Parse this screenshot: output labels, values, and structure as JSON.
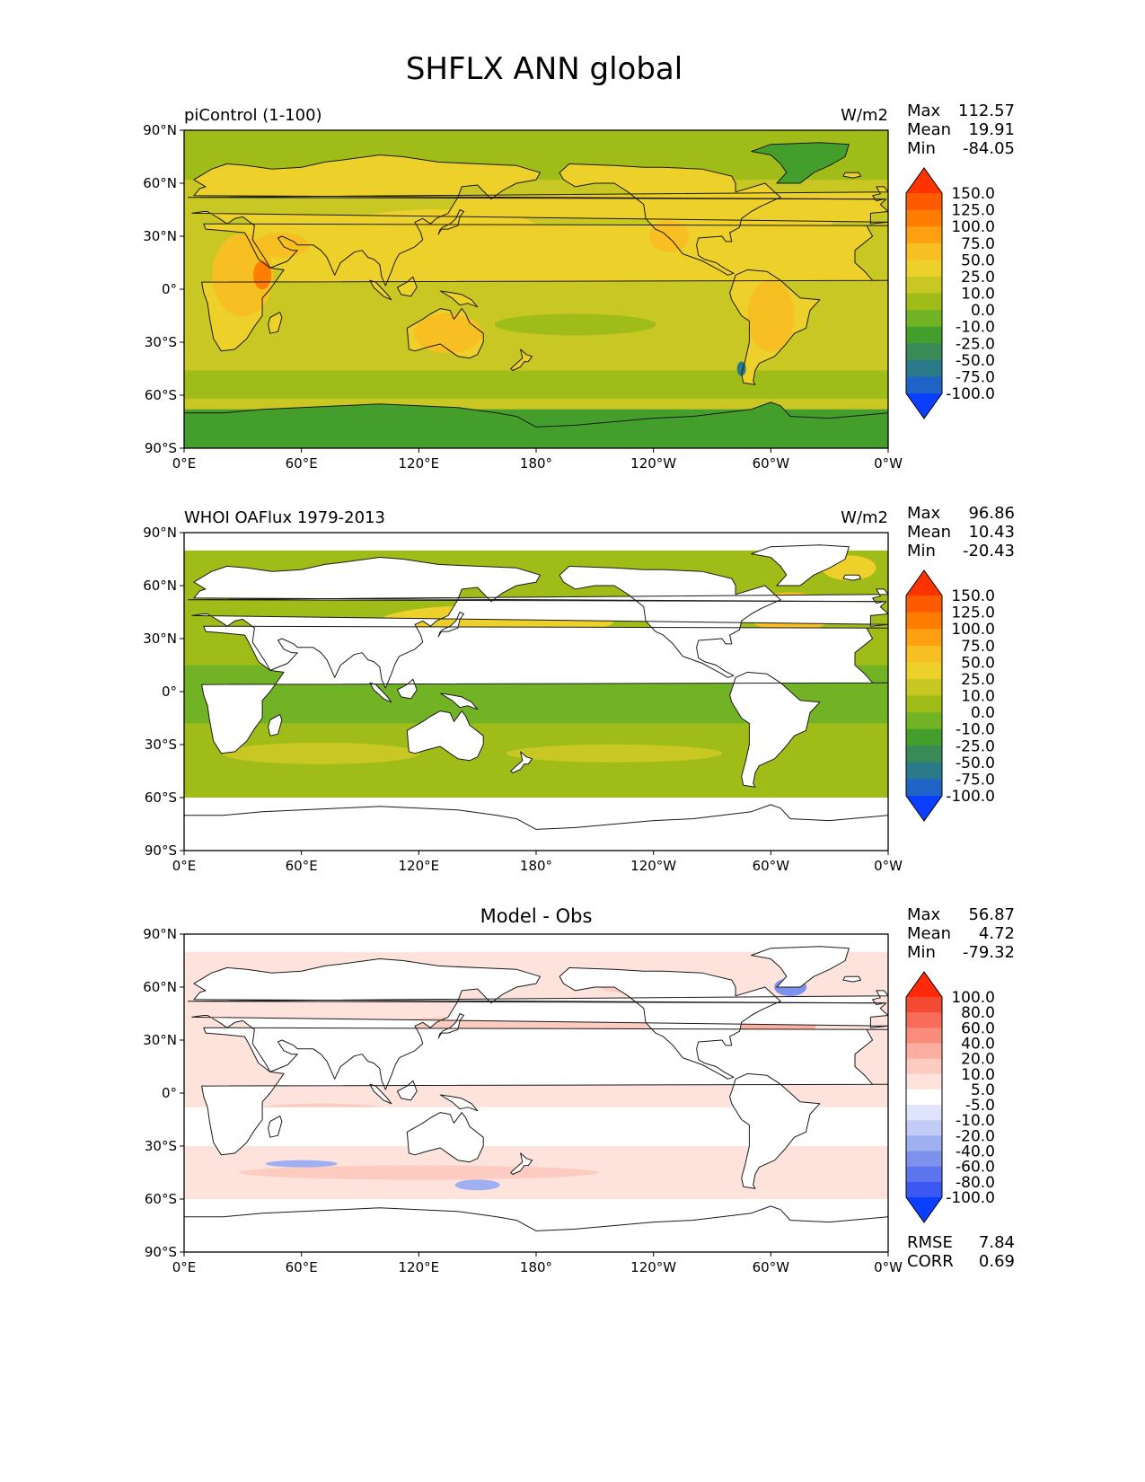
{
  "figure": {
    "title": "SHFLX ANN global"
  },
  "panels": [
    {
      "id": "test",
      "title_left": "piControl (1-100)",
      "title_center": "",
      "units": "W/m2",
      "stats": [
        {
          "label": "Max",
          "value": "112.57"
        },
        {
          "label": "Mean",
          "value": "19.91"
        },
        {
          "label": "Min",
          "value": "-84.05"
        }
      ],
      "extra_stats": [],
      "colorbar": {
        "levels": [
          "150.0",
          "125.0",
          "100.0",
          "75.0",
          "50.0",
          "25.0",
          "10.0",
          "0.0",
          "-10.0",
          "-25.0",
          "-50.0",
          "-75.0",
          "-100.0"
        ],
        "colors": [
          "#ff3300",
          "#ff5a00",
          "#ff7d00",
          "#ff9f12",
          "#f8bf22",
          "#eed02a",
          "#c8c724",
          "#a0bc19",
          "#72b325",
          "#449e2c",
          "#3a8a58",
          "#2a7a8c",
          "#1f63c7",
          "#0a3fff"
        ]
      }
    },
    {
      "id": "ref",
      "title_left": "WHOI OAFlux 1979-2013",
      "title_center": "",
      "units": "W/m2",
      "stats": [
        {
          "label": "Max",
          "value": "96.86"
        },
        {
          "label": "Mean",
          "value": "10.43"
        },
        {
          "label": "Min",
          "value": "-20.43"
        }
      ],
      "extra_stats": [],
      "colorbar": {
        "levels": [
          "150.0",
          "125.0",
          "100.0",
          "75.0",
          "50.0",
          "25.0",
          "10.0",
          "0.0",
          "-10.0",
          "-25.0",
          "-50.0",
          "-75.0",
          "-100.0"
        ],
        "colors": [
          "#ff3300",
          "#ff5a00",
          "#ff7d00",
          "#ff9f12",
          "#f8bf22",
          "#eed02a",
          "#c8c724",
          "#a0bc19",
          "#72b325",
          "#449e2c",
          "#3a8a58",
          "#2a7a8c",
          "#1f63c7",
          "#0a3fff"
        ]
      }
    },
    {
      "id": "diff",
      "title_left": "",
      "title_center": "Model - Obs",
      "units": "",
      "stats": [
        {
          "label": "Max",
          "value": "56.87"
        },
        {
          "label": "Mean",
          "value": "4.72"
        },
        {
          "label": "Min",
          "value": "-79.32"
        }
      ],
      "extra_stats": [
        {
          "label": "RMSE",
          "value": "7.84"
        },
        {
          "label": "CORR",
          "value": "0.69"
        }
      ],
      "colorbar": {
        "levels": [
          "100.0",
          "80.0",
          "60.0",
          "40.0",
          "20.0",
          "10.0",
          "5.0",
          "-5.0",
          "-10.0",
          "-20.0",
          "-40.0",
          "-60.0",
          "-80.0",
          "-100.0"
        ],
        "colors": [
          "#ff2a0a",
          "#f34a34",
          "#f76d5a",
          "#fa8c7c",
          "#fcaea0",
          "#fdcbc0",
          "#fee3dc",
          "#ffffff",
          "#dfe4fb",
          "#c2ccf6",
          "#9eb0f1",
          "#7c92ec",
          "#5c74ed",
          "#3b58f3",
          "#0a3fff"
        ]
      }
    }
  ],
  "axes": {
    "lat_ticks": [
      "90°N",
      "60°N",
      "30°N",
      "0°",
      "30°S",
      "60°S",
      "90°S"
    ],
    "lon_ticks": [
      "0°E",
      "60°E",
      "120°E",
      "180°",
      "120°W",
      "60°W",
      "0°W"
    ]
  }
}
